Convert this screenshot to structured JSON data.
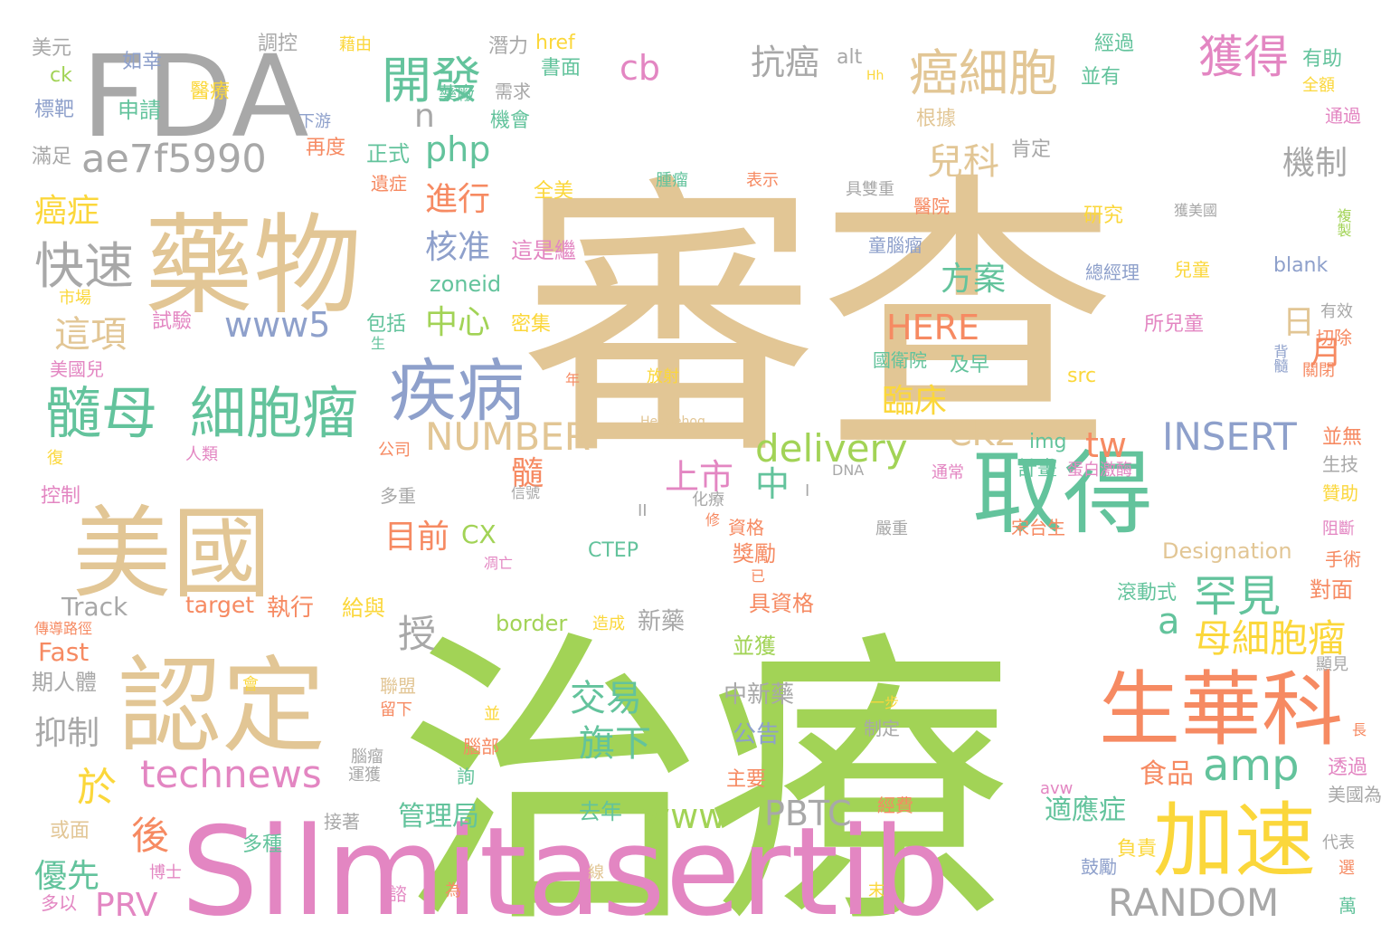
{
  "palette": {
    "tan": "#E2C695",
    "green": "#A2D356",
    "pink": "#E386C2",
    "gray": "#A8A8A8",
    "salmon": "#F68A62",
    "teal": "#63C39C",
    "blue": "#8EA0CB",
    "yellow": "#FBD73B"
  },
  "words": [
    {
      "text": "審查",
      "color": "tan"
    },
    {
      "text": "治療",
      "color": "green"
    },
    {
      "text": "Silmitasertib",
      "color": "pink"
    },
    {
      "text": "FDA",
      "color": "gray"
    },
    {
      "text": "藥物",
      "color": "tan"
    },
    {
      "text": "美國",
      "color": "tan"
    },
    {
      "text": "認定",
      "color": "tan"
    },
    {
      "text": "取得",
      "color": "teal"
    },
    {
      "text": "生華科",
      "color": "salmon"
    },
    {
      "text": "加速",
      "color": "yellow"
    },
    {
      "text": "疾病",
      "color": "blue"
    },
    {
      "text": "髓母",
      "color": "teal"
    },
    {
      "text": "細胞瘤",
      "color": "teal"
    },
    {
      "text": "癌細胞",
      "color": "tan"
    },
    {
      "text": "開發",
      "color": "teal"
    },
    {
      "text": "獲得",
      "color": "pink"
    },
    {
      "text": "ae7f5990",
      "color": "gray"
    },
    {
      "text": "快速",
      "color": "gray"
    },
    {
      "text": "technews",
      "color": "pink"
    },
    {
      "text": "amp",
      "color": "teal"
    },
    {
      "text": "罕見",
      "color": "teal"
    },
    {
      "text": "母細胞瘤",
      "color": "yellow"
    },
    {
      "text": "RANDOM",
      "color": "gray"
    },
    {
      "text": "INSERT",
      "color": "blue"
    },
    {
      "text": "NUMBER",
      "color": "tan"
    },
    {
      "text": "delivery",
      "color": "green"
    },
    {
      "text": "www5",
      "color": "blue"
    },
    {
      "text": "www",
      "color": "green"
    },
    {
      "text": "PBTC",
      "color": "gray"
    },
    {
      "text": "HERE",
      "color": "salmon"
    },
    {
      "text": "php",
      "color": "teal"
    },
    {
      "text": "cb",
      "color": "pink"
    },
    {
      "text": "抗癌",
      "color": "gray"
    },
    {
      "text": "兒科",
      "color": "tan"
    },
    {
      "text": "機制",
      "color": "gray"
    },
    {
      "text": "進行",
      "color": "salmon"
    },
    {
      "text": "核准",
      "color": "blue"
    },
    {
      "text": "這項",
      "color": "tan"
    },
    {
      "text": "癌症",
      "color": "yellow"
    },
    {
      "text": "優先",
      "color": "teal"
    },
    {
      "text": "PRV",
      "color": "pink"
    },
    {
      "text": "於",
      "color": "yellow"
    },
    {
      "text": "後",
      "color": "salmon"
    },
    {
      "text": "抑制",
      "color": "gray"
    },
    {
      "text": "授",
      "color": "gray"
    },
    {
      "text": "a",
      "color": "teal"
    },
    {
      "text": "交易",
      "color": "teal"
    },
    {
      "text": "旗下",
      "color": "teal"
    },
    {
      "text": "上市",
      "color": "pink"
    },
    {
      "text": "中",
      "color": "teal"
    },
    {
      "text": "目前",
      "color": "salmon"
    },
    {
      "text": "髓",
      "color": "salmon"
    },
    {
      "text": "CK2",
      "color": "tan"
    },
    {
      "text": "tw",
      "color": "salmon"
    },
    {
      "text": "臨床",
      "color": "yellow"
    },
    {
      "text": "方案",
      "color": "teal"
    },
    {
      "text": "中心",
      "color": "green"
    },
    {
      "text": "日",
      "color": "tan"
    },
    {
      "text": "月",
      "color": "salmon"
    },
    {
      "text": "n",
      "color": "gray"
    },
    {
      "text": "管理局",
      "color": "teal"
    },
    {
      "text": "適應症",
      "color": "teal"
    },
    {
      "text": "食品",
      "color": "salmon"
    },
    {
      "text": "Designation",
      "color": "tan"
    },
    {
      "text": "Track",
      "color": "gray"
    },
    {
      "text": "Fast",
      "color": "salmon"
    },
    {
      "text": "target",
      "color": "salmon"
    },
    {
      "text": "執行",
      "color": "salmon"
    },
    {
      "text": "新藥",
      "color": "gray"
    },
    {
      "text": "中新藥",
      "color": "gray"
    },
    {
      "text": "公告",
      "color": "blue"
    },
    {
      "text": "zoneid",
      "color": "teal"
    },
    {
      "text": "border",
      "color": "green"
    },
    {
      "text": "img",
      "color": "teal"
    },
    {
      "text": "CTEP",
      "color": "teal"
    },
    {
      "text": "CX",
      "color": "green"
    },
    {
      "text": "blank",
      "color": "blue"
    },
    {
      "text": "src",
      "color": "yellow"
    },
    {
      "text": "href",
      "color": "yellow"
    },
    {
      "text": "alt",
      "color": "gray"
    },
    {
      "text": "ck",
      "color": "green"
    },
    {
      "text": "Hedgehog",
      "color": "tan"
    },
    {
      "text": "DNA",
      "color": "gray"
    },
    {
      "text": "avw",
      "color": "pink"
    },
    {
      "text": "Hh",
      "color": "yellow"
    },
    {
      "text": "美元",
      "color": "gray"
    },
    {
      "text": "如幸",
      "color": "blue"
    },
    {
      "text": "標靶",
      "color": "blue"
    },
    {
      "text": "醫療",
      "color": "yellow"
    },
    {
      "text": "申請",
      "color": "teal"
    },
    {
      "text": "滿足",
      "color": "gray"
    },
    {
      "text": "調控",
      "color": "gray"
    },
    {
      "text": "藉由",
      "color": "yellow"
    },
    {
      "text": "潛力",
      "color": "gray"
    },
    {
      "text": "書面",
      "color": "teal"
    },
    {
      "text": "需求",
      "color": "gray"
    },
    {
      "text": "藥廠",
      "color": "teal"
    },
    {
      "text": "機會",
      "color": "teal"
    },
    {
      "text": "下游",
      "color": "blue"
    },
    {
      "text": "再度",
      "color": "salmon"
    },
    {
      "text": "正式",
      "color": "teal"
    },
    {
      "text": "經過",
      "color": "teal"
    },
    {
      "text": "有助",
      "color": "teal"
    },
    {
      "text": "並有",
      "color": "teal"
    },
    {
      "text": "全額",
      "color": "yellow"
    },
    {
      "text": "通過",
      "color": "pink"
    },
    {
      "text": "根據",
      "color": "tan"
    },
    {
      "text": "肯定",
      "color": "gray"
    },
    {
      "text": "遺症",
      "color": "salmon"
    },
    {
      "text": "全美",
      "color": "yellow"
    },
    {
      "text": "腫瘤",
      "color": "teal"
    },
    {
      "text": "表示",
      "color": "salmon"
    },
    {
      "text": "具雙重",
      "color": "gray"
    },
    {
      "text": "醫院",
      "color": "salmon"
    },
    {
      "text": "研究",
      "color": "yellow"
    },
    {
      "text": "獲美國",
      "color": "gray"
    },
    {
      "text": "複製",
      "color": "green"
    },
    {
      "text": "這是繼",
      "color": "pink"
    },
    {
      "text": "童腦瘤",
      "color": "blue"
    },
    {
      "text": "總經理",
      "color": "blue"
    },
    {
      "text": "兒童",
      "color": "yellow"
    },
    {
      "text": "市場",
      "color": "yellow"
    },
    {
      "text": "試驗",
      "color": "pink"
    },
    {
      "text": "密集",
      "color": "yellow"
    },
    {
      "text": "包括",
      "color": "teal"
    },
    {
      "text": "所兒童",
      "color": "pink"
    },
    {
      "text": "有效",
      "color": "gray"
    },
    {
      "text": "切除",
      "color": "salmon"
    },
    {
      "text": "背髓",
      "color": "blue"
    },
    {
      "text": "關閉",
      "color": "salmon"
    },
    {
      "text": "美國兒",
      "color": "pink"
    },
    {
      "text": "生",
      "color": "teal"
    },
    {
      "text": "年",
      "color": "salmon"
    },
    {
      "text": "放射",
      "color": "yellow"
    },
    {
      "text": "國衛院",
      "color": "teal"
    },
    {
      "text": "及早",
      "color": "teal"
    },
    {
      "text": "公司",
      "color": "salmon"
    },
    {
      "text": "人類",
      "color": "pink"
    },
    {
      "text": "復",
      "color": "yellow"
    },
    {
      "text": "控制",
      "color": "pink"
    },
    {
      "text": "多重",
      "color": "gray"
    },
    {
      "text": "信號",
      "color": "gray"
    },
    {
      "text": "II",
      "color": "gray"
    },
    {
      "text": "I",
      "color": "gray"
    },
    {
      "text": "化療",
      "color": "gray"
    },
    {
      "text": "修",
      "color": "salmon"
    },
    {
      "text": "凋亡",
      "color": "pink"
    },
    {
      "text": "資格",
      "color": "salmon"
    },
    {
      "text": "獎勵",
      "color": "salmon"
    },
    {
      "text": "已",
      "color": "salmon"
    },
    {
      "text": "具資格",
      "color": "salmon"
    },
    {
      "text": "嚴重",
      "color": "gray"
    },
    {
      "text": "宋台生",
      "color": "salmon"
    },
    {
      "text": "通常",
      "color": "pink"
    },
    {
      "text": "計畫",
      "color": "teal"
    },
    {
      "text": "蛋白激酶",
      "color": "pink"
    },
    {
      "text": "並無",
      "color": "salmon"
    },
    {
      "text": "生技",
      "color": "gray"
    },
    {
      "text": "贊助",
      "color": "yellow"
    },
    {
      "text": "阻斷",
      "color": "pink"
    },
    {
      "text": "手術",
      "color": "salmon"
    },
    {
      "text": "對面",
      "color": "salmon"
    },
    {
      "text": "滾動式",
      "color": "teal"
    },
    {
      "text": "傳導路徑",
      "color": "salmon"
    },
    {
      "text": "給與",
      "color": "yellow"
    },
    {
      "text": "造成",
      "color": "yellow"
    },
    {
      "text": "期人體",
      "color": "gray"
    },
    {
      "text": "會",
      "color": "yellow"
    },
    {
      "text": "聯盟",
      "color": "tan"
    },
    {
      "text": "留下",
      "color": "salmon"
    },
    {
      "text": "並獲",
      "color": "green"
    },
    {
      "text": "顯見",
      "color": "gray"
    },
    {
      "text": "一步",
      "color": "yellow"
    },
    {
      "text": "制定",
      "color": "gray"
    },
    {
      "text": "長",
      "color": "salmon"
    },
    {
      "text": "透過",
      "color": "pink"
    },
    {
      "text": "並",
      "color": "yellow"
    },
    {
      "text": "腦瘤",
      "color": "gray"
    },
    {
      "text": "腦部",
      "color": "salmon"
    },
    {
      "text": "運獲",
      "color": "gray"
    },
    {
      "text": "詢",
      "color": "teal"
    },
    {
      "text": "主要",
      "color": "salmon"
    },
    {
      "text": "經費",
      "color": "salmon"
    },
    {
      "text": "美國為",
      "color": "gray"
    },
    {
      "text": "去年",
      "color": "teal"
    },
    {
      "text": "或面",
      "color": "tan"
    },
    {
      "text": "多種",
      "color": "teal"
    },
    {
      "text": "接著",
      "color": "gray"
    },
    {
      "text": "博士",
      "color": "pink"
    },
    {
      "text": "負責",
      "color": "yellow"
    },
    {
      "text": "鼓勵",
      "color": "blue"
    },
    {
      "text": "代表",
      "color": "gray"
    },
    {
      "text": "選",
      "color": "salmon"
    },
    {
      "text": "萬",
      "color": "teal"
    },
    {
      "text": "末",
      "color": "yellow"
    },
    {
      "text": "多以",
      "color": "pink"
    },
    {
      "text": "諮",
      "color": "pink"
    },
    {
      "text": "為",
      "color": "salmon"
    },
    {
      "text": "線",
      "color": "tan"
    }
  ]
}
